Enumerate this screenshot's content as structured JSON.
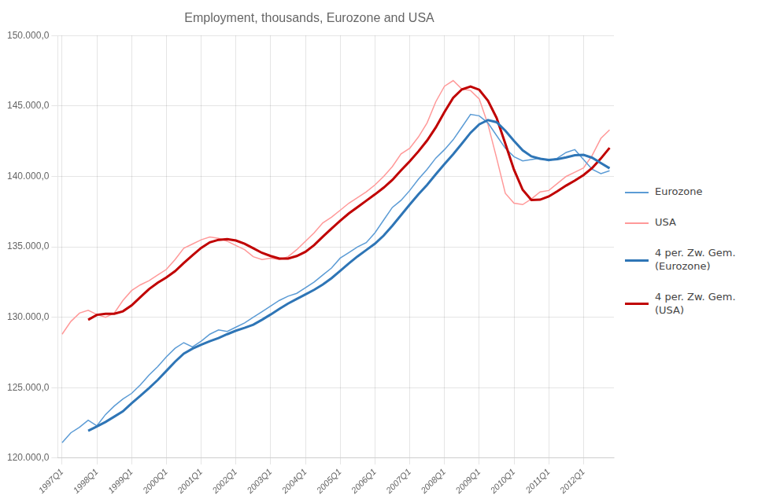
{
  "chart_data": {
    "type": "line",
    "title": "Employment, thousands, Eurozone and USA",
    "categories": [
      "1997Q1",
      null,
      null,
      null,
      "1998Q1",
      null,
      null,
      null,
      "1999Q1",
      null,
      null,
      null,
      "2000Q1",
      null,
      null,
      null,
      "2001Q1",
      null,
      null,
      null,
      "2002Q1",
      null,
      null,
      null,
      "2003Q1",
      null,
      null,
      null,
      "2004Q1",
      null,
      null,
      null,
      "2005Q1",
      null,
      null,
      null,
      "2006Q1",
      null,
      null,
      null,
      "2007Q1",
      null,
      null,
      null,
      "2008Q1",
      null,
      null,
      null,
      "2009Q1",
      null,
      null,
      null,
      "2010Q1",
      null,
      null,
      null,
      "2011Q1",
      null,
      null,
      null,
      "2012Q1",
      null,
      null,
      null
    ],
    "series": [
      {
        "name": "Eurozone",
        "color": "#5B9BD5",
        "values": [
          121100,
          121800,
          122200,
          122700,
          122300,
          123100,
          123700,
          124200,
          124600,
          125200,
          125900,
          126500,
          127200,
          127800,
          128200,
          127900,
          128300,
          128800,
          129100,
          129000,
          129300,
          129600,
          130000,
          130400,
          130800,
          131200,
          131500,
          131700,
          132100,
          132500,
          133000,
          133500,
          134200,
          134600,
          135000,
          135300,
          136000,
          136900,
          137800,
          138300,
          139000,
          139800,
          140500,
          141300,
          141900,
          142600,
          143500,
          144400,
          144300,
          143800,
          142900,
          142000,
          141400,
          141100,
          141200,
          141300,
          141100,
          141300,
          141700,
          141900,
          141200,
          140500,
          140200,
          140400
        ]
      },
      {
        "name": "USA",
        "color": "#FF9999",
        "values": [
          128800,
          129700,
          130300,
          130500,
          130200,
          130000,
          130300,
          131200,
          131900,
          132300,
          132600,
          133000,
          133400,
          134100,
          134900,
          135200,
          135500,
          135700,
          135600,
          135400,
          135100,
          134800,
          134300,
          134100,
          134200,
          134100,
          134300,
          134800,
          135400,
          136000,
          136700,
          137100,
          137600,
          138100,
          138500,
          138900,
          139400,
          140000,
          140700,
          141600,
          142000,
          142800,
          143800,
          145300,
          146400,
          146800,
          146200,
          146100,
          145500,
          143700,
          141300,
          138800,
          138100,
          138000,
          138400,
          138900,
          139000,
          139500,
          140000,
          140300,
          140600,
          141500,
          142700,
          143300
        ]
      },
      {
        "name": "4 per. Zw. Gem.\n(Eurozone)",
        "color": "#2E75B6",
        "values": [
          null,
          null,
          null,
          121950,
          122250,
          122575,
          122950,
          123325,
          123900,
          124425,
          124975,
          125550,
          126200,
          126850,
          127425,
          127775,
          128050,
          128300,
          128525,
          128800,
          129050,
          129250,
          129475,
          129825,
          130200,
          130600,
          130975,
          131300,
          131625,
          131950,
          132325,
          132775,
          133300,
          133825,
          134325,
          134775,
          135225,
          135800,
          136500,
          137250,
          138000,
          138725,
          139400,
          140150,
          140875,
          141575,
          142325,
          143100,
          143700,
          144000,
          143850,
          143250,
          142525,
          141850,
          141425,
          141250,
          141175,
          141225,
          141350,
          141500,
          141525,
          141325,
          140950,
          140575
        ]
      },
      {
        "name": "4 per. Zw. Gem.\n(USA)",
        "color": "#C00000",
        "values": [
          null,
          null,
          null,
          129825,
          130175,
          130250,
          130250,
          130425,
          130850,
          131425,
          132000,
          132450,
          132825,
          133275,
          133850,
          134400,
          134925,
          135325,
          135500,
          135550,
          135450,
          135225,
          134900,
          134575,
          134350,
          134175,
          134175,
          134350,
          134650,
          135125,
          135725,
          136300,
          136850,
          137375,
          137825,
          138275,
          138725,
          139200,
          139750,
          140425,
          141075,
          141775,
          142550,
          143475,
          144575,
          145575,
          146175,
          146375,
          146150,
          145375,
          144150,
          142325,
          140475,
          139050,
          138325,
          138350,
          138575,
          138950,
          139350,
          139700,
          140100,
          140600,
          141275,
          142025
        ]
      }
    ],
    "ylim": [
      120000,
      150000
    ],
    "yticks": [
      {
        "value": 120000,
        "label": "120.000,0"
      },
      {
        "value": 125000,
        "label": "125.000,0"
      },
      {
        "value": 130000,
        "label": "130.000,0"
      },
      {
        "value": 135000,
        "label": "135.000,0"
      },
      {
        "value": 140000,
        "label": "140.000,0"
      },
      {
        "value": 145000,
        "label": "145.000,0"
      },
      {
        "value": 150000,
        "label": "150.000,0"
      }
    ],
    "grid": true,
    "legend": "right"
  }
}
